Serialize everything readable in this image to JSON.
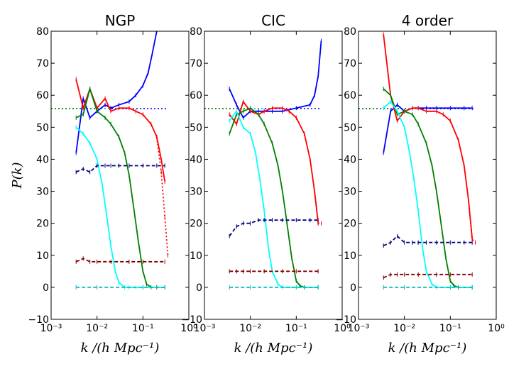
{
  "chart_data": [
    {
      "type": "line",
      "title": "NGP",
      "xlabel": "k /(h Mpc⁻¹)",
      "ylabel": "P(k)",
      "xscale": "log",
      "xlim": [
        0.001,
        1
      ],
      "ylim": [
        -10,
        80
      ],
      "xticks": [
        "10⁻³",
        "10⁻²",
        "10⁻¹",
        "10⁰"
      ],
      "yticks": [
        "−10",
        "0",
        "10",
        "20",
        "30",
        "40",
        "50",
        "60",
        "70",
        "80"
      ],
      "reference_line": 55.8,
      "series": [
        {
          "color": "#0000ff",
          "style": "solid",
          "x": [
            0.0035,
            0.005,
            0.007,
            0.01,
            0.015,
            0.02,
            0.03,
            0.05,
            0.07,
            0.1,
            0.13,
            0.16,
            0.2
          ],
          "y": [
            42,
            59,
            53,
            55,
            57,
            56,
            57,
            58,
            60,
            63,
            67,
            73,
            80
          ]
        },
        {
          "color": "#ff0000",
          "style": "solid",
          "x": [
            0.0035,
            0.005,
            0.007,
            0.01,
            0.015,
            0.02,
            0.03,
            0.05,
            0.07,
            0.1,
            0.15,
            0.2,
            0.25,
            0.3
          ],
          "y": [
            65,
            56,
            62,
            56,
            59,
            55,
            56,
            56,
            55,
            54,
            51,
            47,
            40,
            33
          ]
        },
        {
          "color": "#008000",
          "style": "solid",
          "x": [
            0.0035,
            0.005,
            0.007,
            0.01,
            0.015,
            0.02,
            0.03,
            0.04,
            0.05,
            0.06,
            0.08,
            0.1,
            0.12,
            0.15,
            0.2,
            0.3
          ],
          "y": [
            53,
            54,
            62,
            55,
            53,
            51,
            47,
            42,
            35,
            27,
            14,
            5,
            1,
            0,
            0,
            0
          ]
        },
        {
          "color": "#00ffff",
          "style": "solid",
          "x": [
            0.0035,
            0.005,
            0.007,
            0.01,
            0.013,
            0.016,
            0.02,
            0.025,
            0.03,
            0.04,
            0.05,
            0.07,
            0.1,
            0.3
          ],
          "y": [
            50,
            48,
            45,
            40,
            32,
            23,
            13,
            5,
            1.5,
            0,
            0,
            0,
            0,
            0
          ]
        },
        {
          "color": "#000080",
          "style": "dashed",
          "x": [
            0.0035,
            0.005,
            0.007,
            0.01,
            0.015,
            0.02,
            0.03,
            0.05,
            0.1,
            0.2,
            0.3
          ],
          "y": [
            36,
            37,
            36,
            38,
            38,
            38,
            38,
            38,
            38,
            38,
            38
          ]
        },
        {
          "color": "#800000",
          "style": "dashed",
          "x": [
            0.0035,
            0.005,
            0.007,
            0.01,
            0.02,
            0.05,
            0.1,
            0.3
          ],
          "y": [
            8,
            9,
            8,
            8,
            8,
            8,
            8,
            8
          ]
        },
        {
          "color": "#00bbbb",
          "style": "dashed",
          "x": [
            0.0035,
            0.01,
            0.1,
            0.3
          ],
          "y": [
            0,
            0,
            0,
            0
          ]
        },
        {
          "color": "#ff0000",
          "style": "dotted",
          "x": [
            0.2,
            0.25,
            0.3,
            0.35
          ],
          "y": [
            47,
            36,
            22,
            10
          ]
        }
      ]
    },
    {
      "type": "line",
      "title": "CIC",
      "xlabel": "k /(h Mpc⁻¹)",
      "xscale": "log",
      "xlim": [
        0.001,
        1
      ],
      "ylim": [
        -10,
        80
      ],
      "xticks": [
        "10⁻³",
        "10⁻²",
        "10⁻¹",
        "10⁰"
      ],
      "yticks": [
        "−10",
        "0",
        "10",
        "20",
        "30",
        "40",
        "50",
        "60",
        "70",
        "80"
      ],
      "reference_line": 55.8,
      "series": [
        {
          "color": "#0000ff",
          "style": "solid",
          "x": [
            0.0035,
            0.005,
            0.007,
            0.01,
            0.015,
            0.02,
            0.03,
            0.05,
            0.1,
            0.2,
            0.25,
            0.3,
            0.35
          ],
          "y": [
            62,
            57,
            53,
            55,
            55,
            55,
            55,
            55,
            56,
            57,
            60,
            66,
            77
          ]
        },
        {
          "color": "#ff0000",
          "style": "solid",
          "x": [
            0.0035,
            0.005,
            0.007,
            0.01,
            0.015,
            0.02,
            0.03,
            0.05,
            0.07,
            0.1,
            0.15,
            0.2,
            0.25,
            0.3
          ],
          "y": [
            54,
            51,
            58,
            55,
            54,
            55,
            56,
            56,
            55,
            53,
            48,
            40,
            30,
            20
          ]
        },
        {
          "color": "#008000",
          "style": "solid",
          "x": [
            0.0035,
            0.005,
            0.007,
            0.01,
            0.015,
            0.02,
            0.03,
            0.04,
            0.05,
            0.06,
            0.08,
            0.1,
            0.12,
            0.15,
            0.3
          ],
          "y": [
            48,
            54,
            55,
            56,
            54,
            51,
            45,
            38,
            30,
            22,
            9,
            2,
            0.5,
            0,
            0
          ]
        },
        {
          "color": "#00ffff",
          "style": "solid",
          "x": [
            0.0035,
            0.005,
            0.007,
            0.01,
            0.013,
            0.016,
            0.02,
            0.025,
            0.03,
            0.04,
            0.05,
            0.1,
            0.3
          ],
          "y": [
            52,
            55,
            50,
            48,
            42,
            34,
            24,
            12,
            5,
            1,
            0,
            0,
            0
          ]
        },
        {
          "color": "#000080",
          "style": "dashed",
          "x": [
            0.0035,
            0.005,
            0.007,
            0.01,
            0.015,
            0.02,
            0.03,
            0.05,
            0.1,
            0.2,
            0.3
          ],
          "y": [
            16,
            19,
            20,
            20,
            21,
            21,
            21,
            21,
            21,
            21,
            21
          ]
        },
        {
          "color": "#800000",
          "style": "dashed",
          "x": [
            0.0035,
            0.005,
            0.007,
            0.01,
            0.02,
            0.05,
            0.1,
            0.3
          ],
          "y": [
            5,
            5,
            5,
            5,
            5,
            5,
            5,
            5
          ]
        },
        {
          "color": "#00bbbb",
          "style": "dashed",
          "x": [
            0.0035,
            0.01,
            0.1,
            0.3
          ],
          "y": [
            0,
            0,
            0,
            0
          ]
        },
        {
          "color": "#ff0000",
          "style": "dotted",
          "x": [
            0.25,
            0.3,
            0.35
          ],
          "y": [
            30,
            20,
            20
          ]
        }
      ]
    },
    {
      "type": "line",
      "title": "4 order",
      "xlabel": "k /(h Mpc⁻¹)",
      "xscale": "log",
      "xlim": [
        0.001,
        1
      ],
      "ylim": [
        -10,
        80
      ],
      "xticks": [
        "10⁻³",
        "10⁻²",
        "10⁻¹",
        "10⁰"
      ],
      "yticks": [
        "−10",
        "0",
        "10",
        "20",
        "30",
        "40",
        "50",
        "60",
        "70",
        "80"
      ],
      "reference_line": 55.8,
      "series": [
        {
          "color": "#0000ff",
          "style": "solid",
          "x": [
            0.0035,
            0.005,
            0.007,
            0.01,
            0.015,
            0.02,
            0.03,
            0.05,
            0.1,
            0.2,
            0.3
          ],
          "y": [
            42,
            55,
            57,
            55,
            56,
            56,
            56,
            56,
            56,
            56,
            56
          ]
        },
        {
          "color": "#ff0000",
          "style": "solid",
          "x": [
            0.0035,
            0.005,
            0.007,
            0.01,
            0.015,
            0.02,
            0.03,
            0.05,
            0.07,
            0.1,
            0.15,
            0.2,
            0.25,
            0.3
          ],
          "y": [
            79,
            60,
            52,
            55,
            56,
            56,
            55,
            55,
            54,
            52,
            46,
            38,
            27,
            15
          ]
        },
        {
          "color": "#008000",
          "style": "solid",
          "x": [
            0.0035,
            0.005,
            0.007,
            0.01,
            0.015,
            0.02,
            0.03,
            0.04,
            0.05,
            0.06,
            0.08,
            0.1,
            0.12,
            0.15,
            0.3
          ],
          "y": [
            62,
            60,
            54,
            55,
            54,
            51,
            45,
            38,
            30,
            22,
            9,
            2,
            0.5,
            0,
            0
          ]
        },
        {
          "color": "#00ffff",
          "style": "solid",
          "x": [
            0.0035,
            0.005,
            0.007,
            0.01,
            0.013,
            0.016,
            0.02,
            0.025,
            0.03,
            0.04,
            0.05,
            0.1,
            0.3
          ],
          "y": [
            56,
            58,
            55,
            50,
            42,
            34,
            24,
            12,
            5,
            1,
            0,
            0,
            0
          ]
        },
        {
          "color": "#000080",
          "style": "dashed",
          "x": [
            0.0035,
            0.005,
            0.007,
            0.01,
            0.015,
            0.02,
            0.03,
            0.05,
            0.1,
            0.2,
            0.3
          ],
          "y": [
            13,
            14,
            16,
            14,
            14,
            14,
            14,
            14,
            14,
            14,
            14
          ]
        },
        {
          "color": "#800000",
          "style": "dashed",
          "x": [
            0.0035,
            0.005,
            0.007,
            0.01,
            0.02,
            0.05,
            0.1,
            0.3
          ],
          "y": [
            3,
            4,
            4,
            4,
            4,
            4,
            4,
            4
          ]
        },
        {
          "color": "#00bbbb",
          "style": "dashed",
          "x": [
            0.0035,
            0.01,
            0.1,
            0.3
          ],
          "y": [
            0,
            0,
            0,
            0
          ]
        },
        {
          "color": "#ff0000",
          "style": "dotted",
          "x": [
            0.25,
            0.3,
            0.35
          ],
          "y": [
            27,
            15,
            14
          ]
        }
      ]
    }
  ]
}
